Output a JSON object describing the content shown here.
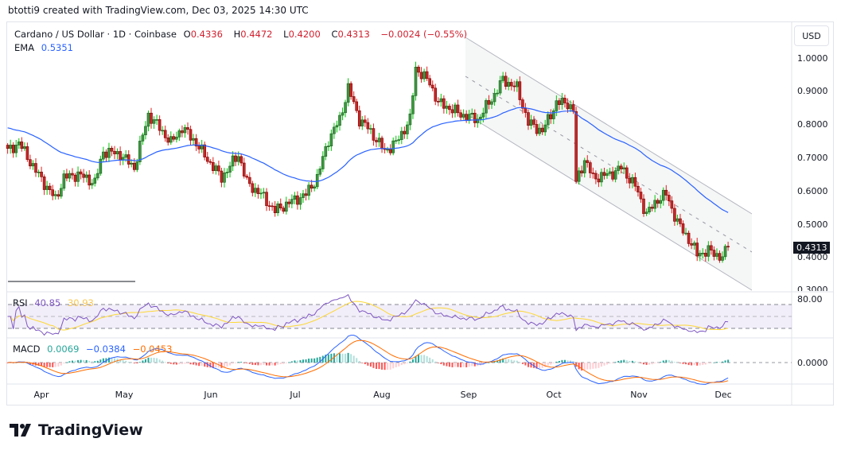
{
  "credit": "btotti9 created with TradingView.com, Dec 03, 2025 14:30 UTC",
  "legend": {
    "symbol": "Cardano / US Dollar · 1D · Coinbase",
    "open_label": "O",
    "open": "0.4336",
    "high_label": "H",
    "high": "0.4472",
    "low_label": "L",
    "low": "0.4200",
    "close_label": "C",
    "close": "0.4313",
    "change": "−0.0024 (−0.55%)",
    "ema_label": "EMA",
    "ema_value": "0.5351"
  },
  "price_axis": {
    "currency": "USD",
    "ticks": [
      "1.0000",
      "0.9000",
      "0.8000",
      "0.7000",
      "0.6000",
      "0.5000",
      "0.4000",
      "0.3000"
    ],
    "last_price": "0.4313"
  },
  "rsi": {
    "label": "RSI",
    "value": "40.85",
    "ma_value": "30.93",
    "axis_tick": "80.00"
  },
  "macd": {
    "label": "MACD",
    "hist": "0.0069",
    "macd": "−0.0384",
    "signal": "−0.0453",
    "axis_tick": "0.0000"
  },
  "time_axis": [
    "Apr",
    "May",
    "Jun",
    "Jul",
    "Aug",
    "Sep",
    "Oct",
    "Nov",
    "Dec"
  ],
  "brand": "TradingView",
  "colors": {
    "up": "#2e7d32",
    "down": "#b71c1c",
    "up_wick": "#00c805",
    "down_wick": "#e0201e",
    "ema": "#2962ff",
    "rsi": "#7e57c2",
    "rsi_ma": "#fdd835",
    "macd": "#2962ff",
    "signal": "#ff6d00",
    "channel": "#b2b5be"
  },
  "chart_data": {
    "type": "candlestick",
    "timeframe": "1D",
    "approx_close_path": [
      [
        "2025-03-22",
        0.72
      ],
      [
        "2025-03-26",
        0.745
      ],
      [
        "2025-04-01",
        0.66
      ],
      [
        "2025-04-08",
        0.575
      ],
      [
        "2025-04-11",
        0.64
      ],
      [
        "2025-04-16",
        0.65
      ],
      [
        "2025-04-22",
        0.625
      ],
      [
        "2025-04-25",
        0.72
      ],
      [
        "2025-05-01",
        0.71
      ],
      [
        "2025-05-06",
        0.67
      ],
      [
        "2025-05-11",
        0.83
      ],
      [
        "2025-05-15",
        0.79
      ],
      [
        "2025-05-19",
        0.745
      ],
      [
        "2025-05-23",
        0.79
      ],
      [
        "2025-05-27",
        0.755
      ],
      [
        "2025-06-01",
        0.695
      ],
      [
        "2025-06-06",
        0.64
      ],
      [
        "2025-06-12",
        0.71
      ],
      [
        "2025-06-15",
        0.625
      ],
      [
        "2025-06-20",
        0.59
      ],
      [
        "2025-06-25",
        0.54
      ],
      [
        "2025-06-30",
        0.565
      ],
      [
        "2025-07-06",
        0.59
      ],
      [
        "2025-07-10",
        0.64
      ],
      [
        "2025-07-14",
        0.755
      ],
      [
        "2025-07-18",
        0.815
      ],
      [
        "2025-07-21",
        0.91
      ],
      [
        "2025-07-25",
        0.815
      ],
      [
        "2025-07-28",
        0.79
      ],
      [
        "2025-08-03",
        0.72
      ],
      [
        "2025-08-07",
        0.745
      ],
      [
        "2025-08-12",
        0.815
      ],
      [
        "2025-08-14",
        0.97
      ],
      [
        "2025-08-19",
        0.925
      ],
      [
        "2025-08-22",
        0.865
      ],
      [
        "2025-08-26",
        0.85
      ],
      [
        "2025-08-30",
        0.83
      ],
      [
        "2025-09-05",
        0.815
      ],
      [
        "2025-09-11",
        0.89
      ],
      [
        "2025-09-14",
        0.935
      ],
      [
        "2025-09-19",
        0.91
      ],
      [
        "2025-09-23",
        0.805
      ],
      [
        "2025-09-28",
        0.78
      ],
      [
        "2025-10-03",
        0.865
      ],
      [
        "2025-10-07",
        0.865
      ],
      [
        "2025-10-09",
        0.84
      ],
      [
        "2025-10-10",
        0.625
      ],
      [
        "2025-10-13",
        0.695
      ],
      [
        "2025-10-16",
        0.64
      ],
      [
        "2025-10-22",
        0.65
      ],
      [
        "2025-10-26",
        0.67
      ],
      [
        "2025-10-31",
        0.615
      ],
      [
        "2025-11-04",
        0.53
      ],
      [
        "2025-11-08",
        0.575
      ],
      [
        "2025-11-11",
        0.59
      ],
      [
        "2025-11-15",
        0.505
      ],
      [
        "2025-11-19",
        0.455
      ],
      [
        "2025-11-22",
        0.41
      ],
      [
        "2025-11-26",
        0.42
      ],
      [
        "2025-12-01",
        0.4
      ],
      [
        "2025-12-03",
        0.4313
      ]
    ],
    "last_candle": {
      "open": 0.4336,
      "high": 0.4472,
      "low": 0.42,
      "close": 0.4313
    },
    "ylim": [
      0.3,
      1.05
    ],
    "ema_last": 0.5351,
    "channel": {
      "type": "descending parallel channel",
      "start": "2025-09-01",
      "end": "2025-12-13"
    }
  }
}
